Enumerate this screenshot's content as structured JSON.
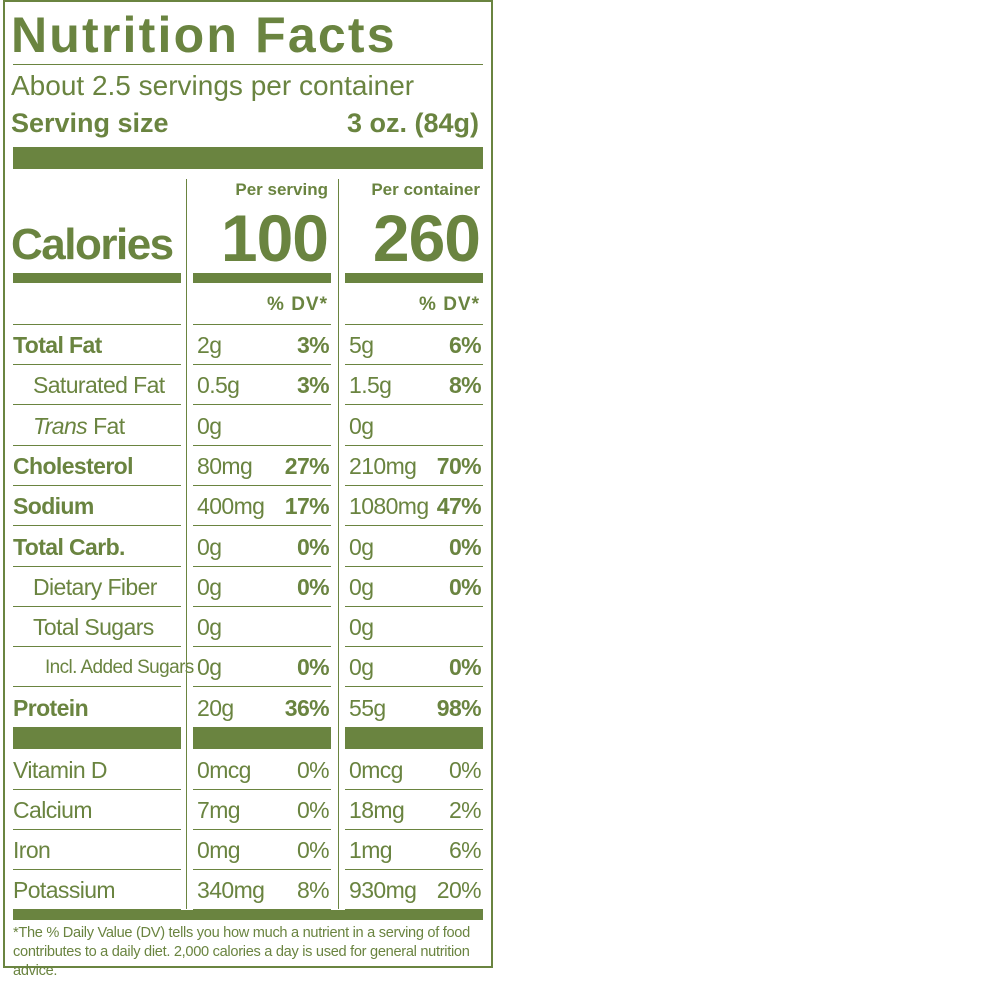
{
  "title": "Nutrition Facts",
  "servings": "About 2.5 servings per container",
  "serving_size": {
    "label": "Serving size",
    "value": "3 oz. (84g)"
  },
  "calories": {
    "label": "Calories",
    "per_serving_header": "Per serving",
    "per_serving": "100",
    "per_container_header": "Per container",
    "per_container": "260"
  },
  "dv_headers": [
    "% DV*",
    "% DV*"
  ],
  "nutrients": [
    {
      "name": "Total Fat",
      "bold": true,
      "indent": 0,
      "serving_amount": "2g",
      "serving_dv": "3%",
      "container_amount": "5g",
      "container_dv": "6%"
    },
    {
      "name": "Saturated Fat",
      "bold": false,
      "indent": 1,
      "serving_amount": "0.5g",
      "serving_dv": "3%",
      "container_amount": "1.5g",
      "container_dv": "8%"
    },
    {
      "italic_prefix": "Trans",
      "name": "Fat",
      "bold": false,
      "indent": 1,
      "serving_amount": "0g",
      "container_amount": "0g"
    },
    {
      "name": "Cholesterol",
      "bold": true,
      "indent": 0,
      "serving_amount": "80mg",
      "serving_dv": "27%",
      "container_amount": "210mg",
      "container_dv": "70%"
    },
    {
      "name": "Sodium",
      "bold": true,
      "indent": 0,
      "serving_amount": "400mg",
      "serving_dv": "17%",
      "container_amount": "1080mg",
      "container_dv": "47%"
    },
    {
      "name": "Total Carb.",
      "bold": true,
      "indent": 0,
      "serving_amount": "0g",
      "serving_dv": "0%",
      "container_amount": "0g",
      "container_dv": "0%"
    },
    {
      "name": "Dietary Fiber",
      "bold": false,
      "indent": 1,
      "serving_amount": "0g",
      "serving_dv": "0%",
      "container_amount": "0g",
      "container_dv": "0%"
    },
    {
      "name": "Total Sugars",
      "bold": false,
      "indent": 1,
      "serving_amount": "0g",
      "container_amount": "0g"
    },
    {
      "name": "Incl. Added Sugars",
      "bold": false,
      "indent": 2,
      "serving_amount": "0g",
      "serving_dv": "0%",
      "container_amount": "0g",
      "container_dv": "0%"
    },
    {
      "name": "Protein",
      "bold": true,
      "indent": 0,
      "serving_amount": "20g",
      "serving_dv": "36%",
      "container_amount": "55g",
      "container_dv": "98%"
    }
  ],
  "vitamins": [
    {
      "name": "Vitamin D",
      "serving_amount": "0mcg",
      "serving_dv": "0%",
      "container_amount": "0mcg",
      "container_dv": "0%"
    },
    {
      "name": "Calcium",
      "serving_amount": "7mg",
      "serving_dv": "0%",
      "container_amount": "18mg",
      "container_dv": "2%"
    },
    {
      "name": "Iron",
      "serving_amount": "0mg",
      "serving_dv": "0%",
      "container_amount": "1mg",
      "container_dv": "6%"
    },
    {
      "name": "Potassium",
      "serving_amount": "340mg",
      "serving_dv": "8%",
      "container_amount": "930mg",
      "container_dv": "20%"
    }
  ],
  "footnote": "*The % Daily Value (DV) tells you how much a nutrient in a serving of food contributes to a daily diet. 2,000 calories a day is used for general nutrition advice."
}
